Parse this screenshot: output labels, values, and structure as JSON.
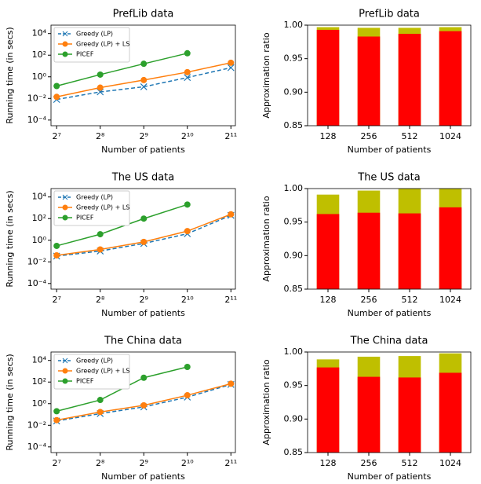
{
  "chart_data": [
    {
      "type": "line",
      "title": "PrefLib data",
      "xlabel": "Number of patients",
      "ylabel": "Running time (in secs)",
      "xscale": "log2",
      "yscale": "log",
      "legend": "upper left",
      "x": [
        128,
        256,
        512,
        1024,
        2048
      ],
      "xlim": [
        117,
        2200
      ],
      "xticks": [
        {
          "value": 128,
          "label": "2⁷"
        },
        {
          "value": 256,
          "label": "2⁸"
        },
        {
          "value": 512,
          "label": "2⁹"
        },
        {
          "value": 1024,
          "label": "2¹⁰"
        },
        {
          "value": 2048,
          "label": "2¹¹"
        }
      ],
      "ylim": [
        3e-05,
        60000
      ],
      "yticks": [
        {
          "value": 0.0001,
          "label": "10⁻⁴"
        },
        {
          "value": 0.01,
          "label": "10⁻²"
        },
        {
          "value": 1,
          "label": "10⁰"
        },
        {
          "value": 100,
          "label": "10²"
        },
        {
          "value": 10000,
          "label": "10⁴"
        }
      ],
      "series": [
        {
          "name": "Greedy (LP)",
          "color": "#1f77b4",
          "marker": "x",
          "linestyle": "dashed",
          "values": [
            0.008,
            0.04,
            0.12,
            0.85,
            7
          ]
        },
        {
          "name": "Greedy (LP) + LS",
          "color": "#ff7f0e",
          "marker": "o",
          "linestyle": "solid",
          "values": [
            0.014,
            0.1,
            0.5,
            2.7,
            20
          ]
        },
        {
          "name": "PICEF",
          "color": "#2ca02c",
          "marker": "o",
          "linestyle": "solid",
          "values": [
            0.14,
            1.6,
            16,
            150,
            null
          ]
        }
      ]
    },
    {
      "type": "bar",
      "title": "PrefLib data",
      "xlabel": "Number of patients",
      "ylabel": "Approximation ratio",
      "categories": [
        "128",
        "256",
        "512",
        "1024"
      ],
      "ylim": [
        0.85,
        1.0
      ],
      "yticks": [
        0.85,
        {
          "value": 0.9,
          "label": "0.90"
        },
        0.95,
        {
          "value": 1.0,
          "label": "1.00"
        }
      ],
      "series": [
        {
          "color": "#bfbf00",
          "values": [
            0.997,
            0.996,
            0.996,
            0.997
          ]
        },
        {
          "color": "#ff0000",
          "values": [
            0.993,
            0.983,
            0.987,
            0.991
          ]
        }
      ]
    },
    {
      "type": "line",
      "title": "The US data",
      "xlabel": "Number of patients",
      "ylabel": "Running time (in secs)",
      "xscale": "log2",
      "yscale": "log",
      "legend": "upper left",
      "x": [
        128,
        256,
        512,
        1024,
        2048
      ],
      "xlim": [
        117,
        2200
      ],
      "xticks": [
        {
          "value": 128,
          "label": "2⁷"
        },
        {
          "value": 256,
          "label": "2⁸"
        },
        {
          "value": 512,
          "label": "2⁹"
        },
        {
          "value": 1024,
          "label": "2¹⁰"
        },
        {
          "value": 2048,
          "label": "2¹¹"
        }
      ],
      "ylim": [
        3e-05,
        60000
      ],
      "yticks": [
        {
          "value": 0.0001,
          "label": "10⁻⁴"
        },
        {
          "value": 0.01,
          "label": "10⁻²"
        },
        {
          "value": 1,
          "label": "10⁰"
        },
        {
          "value": 100,
          "label": "10²"
        },
        {
          "value": 10000,
          "label": "10⁴"
        }
      ],
      "series": [
        {
          "name": "Greedy (LP)",
          "color": "#1f77b4",
          "marker": "x",
          "linestyle": "dashed",
          "values": [
            0.034,
            0.1,
            0.5,
            4,
            200
          ]
        },
        {
          "name": "Greedy (LP) + LS",
          "color": "#ff7f0e",
          "marker": "o",
          "linestyle": "solid",
          "values": [
            0.04,
            0.14,
            0.7,
            7,
            250
          ]
        },
        {
          "name": "PICEF",
          "color": "#2ca02c",
          "marker": "o",
          "linestyle": "solid",
          "values": [
            0.3,
            3.6,
            100,
            2000,
            null
          ]
        }
      ]
    },
    {
      "type": "bar",
      "title": "The US data",
      "xlabel": "Number of patients",
      "ylabel": "Approximation ratio",
      "categories": [
        "128",
        "256",
        "512",
        "1024"
      ],
      "ylim": [
        0.85,
        1.0
      ],
      "yticks": [
        0.85,
        {
          "value": 0.9,
          "label": "0.90"
        },
        0.95,
        {
          "value": 1.0,
          "label": "1.00"
        }
      ],
      "series": [
        {
          "color": "#bfbf00",
          "values": [
            0.991,
            0.997,
            1.0,
            1.0
          ]
        },
        {
          "color": "#ff0000",
          "values": [
            0.962,
            0.964,
            0.963,
            0.972
          ]
        }
      ]
    },
    {
      "type": "line",
      "title": "The China data",
      "xlabel": "Number of patients",
      "ylabel": "Running time (in secs)",
      "xscale": "log2",
      "yscale": "log",
      "legend": "upper left",
      "x": [
        128,
        256,
        512,
        1024,
        2048
      ],
      "xlim": [
        117,
        2200
      ],
      "xticks": [
        {
          "value": 128,
          "label": "2⁷"
        },
        {
          "value": 256,
          "label": "2⁸"
        },
        {
          "value": 512,
          "label": "2⁹"
        },
        {
          "value": 1024,
          "label": "2¹⁰"
        },
        {
          "value": 2048,
          "label": "2¹¹"
        }
      ],
      "ylim": [
        3e-05,
        60000
      ],
      "yticks": [
        {
          "value": 0.0001,
          "label": "10⁻⁴"
        },
        {
          "value": 0.01,
          "label": "10⁻²"
        },
        {
          "value": 1,
          "label": "10⁰"
        },
        {
          "value": 100,
          "label": "10²"
        },
        {
          "value": 10000,
          "label": "10⁴"
        }
      ],
      "series": [
        {
          "name": "Greedy (LP)",
          "color": "#1f77b4",
          "marker": "x",
          "linestyle": "dashed",
          "values": [
            0.025,
            0.12,
            0.5,
            4,
            60
          ]
        },
        {
          "name": "Greedy (LP) + LS",
          "color": "#ff7f0e",
          "marker": "o",
          "linestyle": "solid",
          "values": [
            0.03,
            0.17,
            0.7,
            6,
            70
          ]
        },
        {
          "name": "PICEF",
          "color": "#2ca02c",
          "marker": "o",
          "linestyle": "solid",
          "values": [
            0.2,
            2.2,
            250,
            2500,
            null
          ]
        }
      ]
    },
    {
      "type": "bar",
      "title": "The China data",
      "xlabel": "Number of patients",
      "ylabel": "Approximation ratio",
      "categories": [
        "128",
        "256",
        "512",
        "1024"
      ],
      "ylim": [
        0.85,
        1.0
      ],
      "yticks": [
        0.85,
        {
          "value": 0.9,
          "label": "0.90"
        },
        0.95,
        {
          "value": 1.0,
          "label": "1.00"
        }
      ],
      "series": [
        {
          "color": "#bfbf00",
          "values": [
            0.989,
            0.993,
            0.994,
            0.998
          ]
        },
        {
          "color": "#ff0000",
          "values": [
            0.977,
            0.963,
            0.962,
            0.969
          ]
        }
      ]
    }
  ]
}
